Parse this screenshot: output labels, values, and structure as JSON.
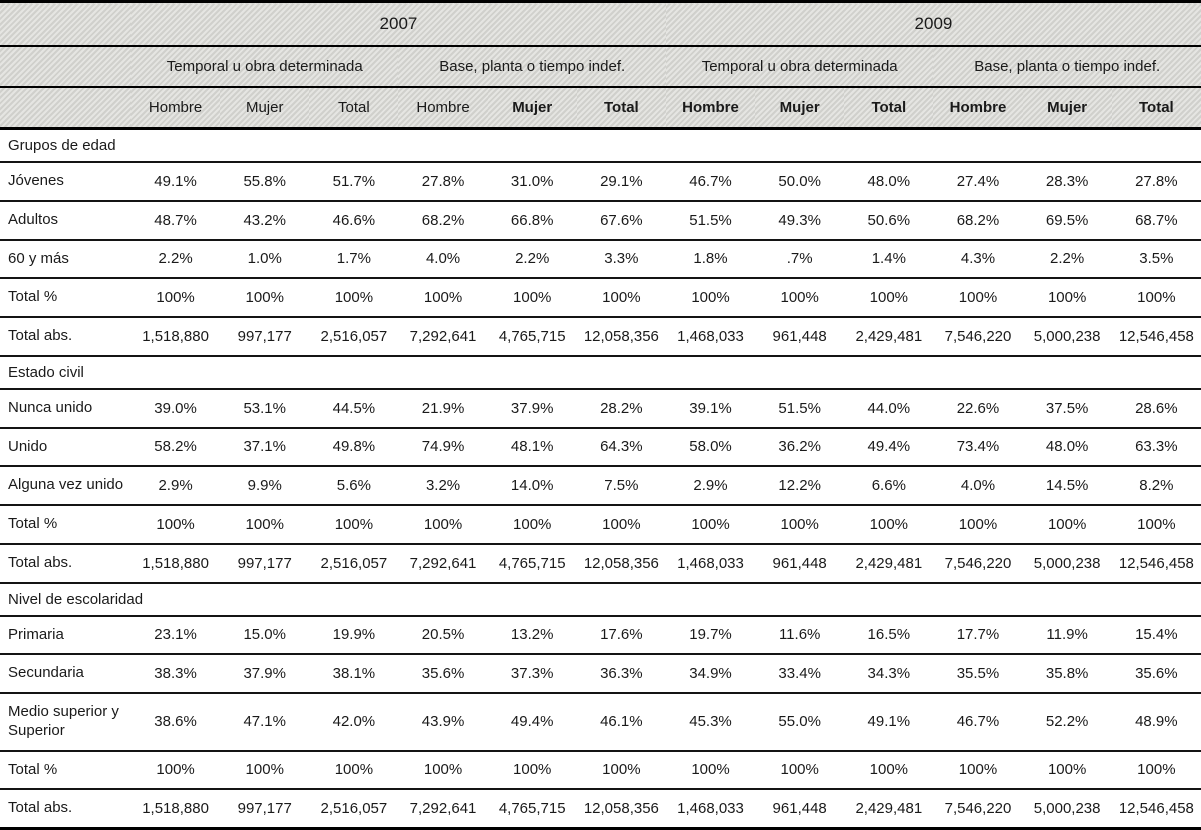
{
  "table": {
    "years": [
      "2007",
      "2009"
    ],
    "contract_types": [
      "Temporal u obra determinada",
      "Base, planta o tiempo indef."
    ],
    "sex_headers": [
      "Hombre",
      "Mujer",
      "Total"
    ],
    "sections": [
      {
        "title": "Grupos de edad",
        "rows": [
          {
            "label": "Jóvenes",
            "values": [
              "49.1%",
              "55.8%",
              "51.7%",
              "27.8%",
              "31.0%",
              "29.1%",
              "46.7%",
              "50.0%",
              "48.0%",
              "27.4%",
              "28.3%",
              "27.8%"
            ]
          },
          {
            "label": "Adultos",
            "values": [
              "48.7%",
              "43.2%",
              "46.6%",
              "68.2%",
              "66.8%",
              "67.6%",
              "51.5%",
              "49.3%",
              "50.6%",
              "68.2%",
              "69.5%",
              "68.7%"
            ]
          },
          {
            "label": "60 y más",
            "values": [
              "2.2%",
              "1.0%",
              "1.7%",
              "4.0%",
              "2.2%",
              "3.3%",
              "1.8%",
              ".7%",
              "1.4%",
              "4.3%",
              "2.2%",
              "3.5%"
            ]
          },
          {
            "label": "Total %",
            "values": [
              "100%",
              "100%",
              "100%",
              "100%",
              "100%",
              "100%",
              "100%",
              "100%",
              "100%",
              "100%",
              "100%",
              "100%"
            ]
          },
          {
            "label": "Total abs.",
            "values": [
              "1,518,880",
              "997,177",
              "2,516,057",
              "7,292,641",
              "4,765,715",
              "12,058,356",
              "1,468,033",
              "961,448",
              "2,429,481",
              "7,546,220",
              "5,000,238",
              "12,546,458"
            ]
          }
        ]
      },
      {
        "title": "Estado civil",
        "rows": [
          {
            "label": "Nunca unido",
            "values": [
              "39.0%",
              "53.1%",
              "44.5%",
              "21.9%",
              "37.9%",
              "28.2%",
              "39.1%",
              "51.5%",
              "44.0%",
              "22.6%",
              "37.5%",
              "28.6%"
            ]
          },
          {
            "label": "Unido",
            "values": [
              "58.2%",
              "37.1%",
              "49.8%",
              "74.9%",
              "48.1%",
              "64.3%",
              "58.0%",
              "36.2%",
              "49.4%",
              "73.4%",
              "48.0%",
              "63.3%"
            ]
          },
          {
            "label": "Alguna vez unido",
            "values": [
              "2.9%",
              "9.9%",
              "5.6%",
              "3.2%",
              "14.0%",
              "7.5%",
              "2.9%",
              "12.2%",
              "6.6%",
              "4.0%",
              "14.5%",
              "8.2%"
            ]
          },
          {
            "label": "Total %",
            "values": [
              "100%",
              "100%",
              "100%",
              "100%",
              "100%",
              "100%",
              "100%",
              "100%",
              "100%",
              "100%",
              "100%",
              "100%"
            ]
          },
          {
            "label": "Total abs.",
            "values": [
              "1,518,880",
              "997,177",
              "2,516,057",
              "7,292,641",
              "4,765,715",
              "12,058,356",
              "1,468,033",
              "961,448",
              "2,429,481",
              "7,546,220",
              "5,000,238",
              "12,546,458"
            ]
          }
        ]
      },
      {
        "title": "Nivel de escolaridad",
        "rows": [
          {
            "label": "Primaria",
            "values": [
              "23.1%",
              "15.0%",
              "19.9%",
              "20.5%",
              "13.2%",
              "17.6%",
              "19.7%",
              "11.6%",
              "16.5%",
              "17.7%",
              "11.9%",
              "15.4%"
            ]
          },
          {
            "label": "Secundaria",
            "values": [
              "38.3%",
              "37.9%",
              "38.1%",
              "35.6%",
              "37.3%",
              "36.3%",
              "34.9%",
              "33.4%",
              "34.3%",
              "35.5%",
              "35.8%",
              "35.6%"
            ]
          },
          {
            "label": "Medio superior y Superior",
            "values": [
              "38.6%",
              "47.1%",
              "42.0%",
              "43.9%",
              "49.4%",
              "46.1%",
              "45.3%",
              "55.0%",
              "49.1%",
              "46.7%",
              "52.2%",
              "48.9%"
            ]
          },
          {
            "label": "Total %",
            "values": [
              "100%",
              "100%",
              "100%",
              "100%",
              "100%",
              "100%",
              "100%",
              "100%",
              "100%",
              "100%",
              "100%",
              "100%"
            ]
          },
          {
            "label": "Total abs.",
            "values": [
              "1,518,880",
              "997,177",
              "2,516,057",
              "7,292,641",
              "4,765,715",
              "12,058,356",
              "1,468,033",
              "961,448",
              "2,429,481",
              "7,546,220",
              "5,000,238",
              "12,546,458"
            ]
          }
        ]
      }
    ]
  },
  "colors": {
    "header_background": "#d7d7d3",
    "rule_line": "#141414",
    "text": "#1a1a1a"
  }
}
